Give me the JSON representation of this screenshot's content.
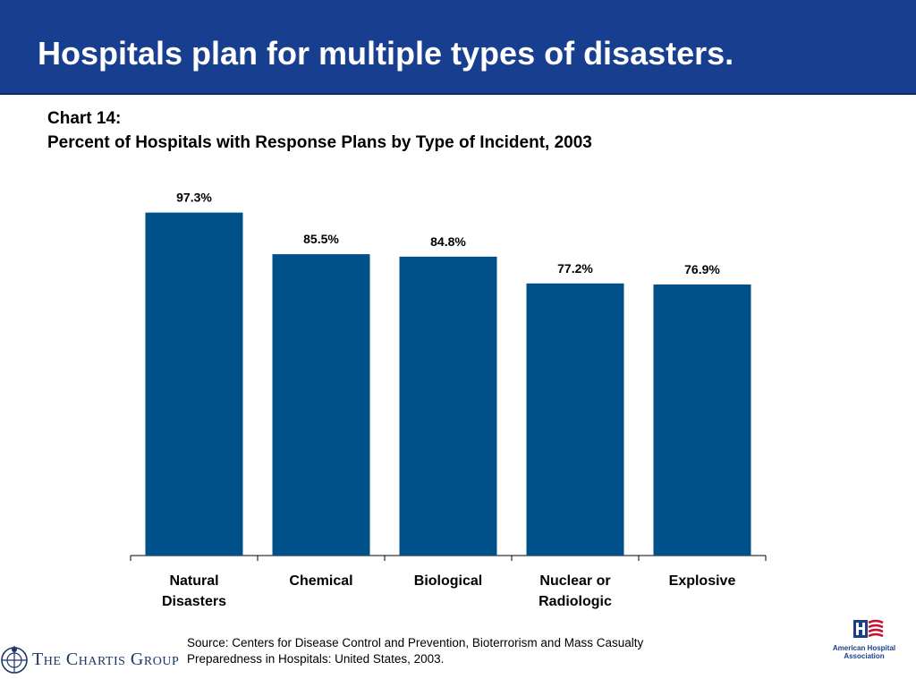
{
  "header": {
    "title": "Hospitals plan for multiple types of disasters."
  },
  "chart_heading": {
    "line1": "Chart 14:",
    "line2": "Percent of Hospitals with Response Plans by Type of Incident, 2003"
  },
  "chart_data": {
    "type": "bar",
    "categories": [
      [
        "Natural",
        "Disasters"
      ],
      [
        "Chemical"
      ],
      [
        "Biological"
      ],
      [
        "Nuclear or",
        "Radiologic"
      ],
      [
        "Explosive"
      ]
    ],
    "values": [
      97.3,
      85.5,
      84.8,
      77.2,
      76.9
    ],
    "value_labels": [
      "97.3%",
      "85.5%",
      "84.8%",
      "77.2%",
      "76.9%"
    ],
    "ylim": [
      0,
      100
    ],
    "grid": false,
    "bar_color": "#00508a"
  },
  "source": {
    "line1": "Source:  Centers for Disease Control and Prevention, Bioterrorism and Mass Casualty",
    "line2": "Preparedness in Hospitals:  United States, 2003."
  },
  "logos": {
    "left_text": "The Chartis Group",
    "right_text_line1": "American Hospital",
    "right_text_line2": "Association"
  }
}
